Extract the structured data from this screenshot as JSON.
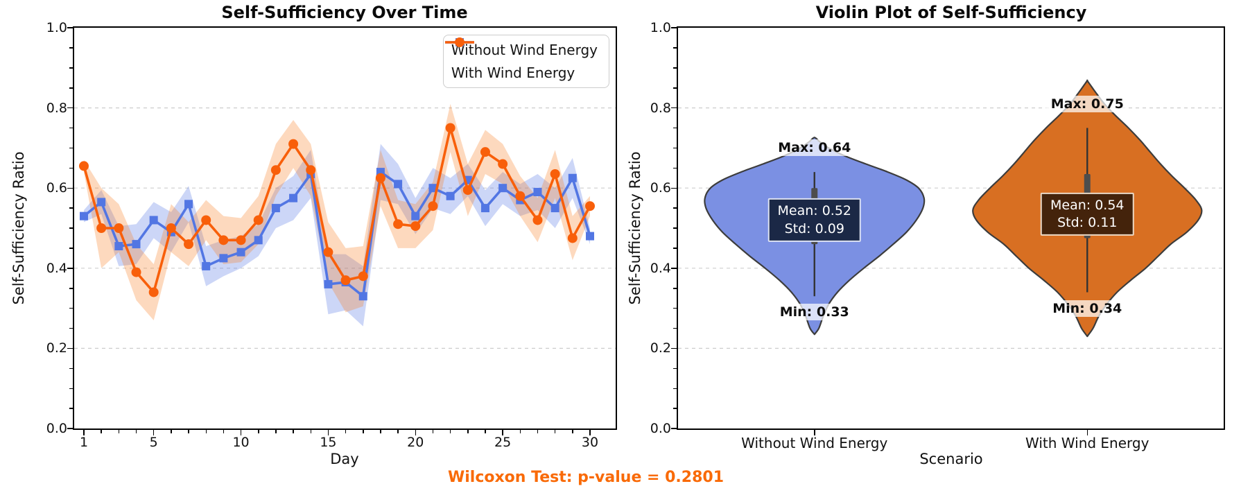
{
  "note": {
    "text": "Wilcoxon Test: p-value = 0.2801",
    "color": "#F96A07"
  },
  "chart_data": [
    {
      "type": "line",
      "title": "Self-Sufficiency Over Time",
      "xlabel": "Day",
      "ylabel": "Self-Sufficiency Ratio",
      "ylim": [
        0.0,
        1.0
      ],
      "y_tick_labels": [
        "0.0",
        "0.2",
        "0.4",
        "0.6",
        "0.8",
        "1.0"
      ],
      "x_major_ticks": [
        1,
        5,
        10,
        15,
        20,
        25,
        30
      ],
      "grid_values": [
        0.2,
        0.4,
        0.6,
        0.8
      ],
      "grid_style": "horizontal-dashed",
      "legend_position": "upper right",
      "x": [
        1,
        2,
        3,
        4,
        5,
        6,
        7,
        8,
        9,
        10,
        11,
        12,
        13,
        14,
        15,
        16,
        17,
        18,
        19,
        20,
        21,
        22,
        23,
        24,
        25,
        26,
        27,
        28,
        29,
        30
      ],
      "series": [
        {
          "name": "Without Wind Energy",
          "color": "#5276E3",
          "band_color": "rgba(85,120,230,0.30)",
          "marker": "square",
          "values": [
            0.53,
            0.565,
            0.455,
            0.46,
            0.52,
            0.49,
            0.56,
            0.405,
            0.425,
            0.44,
            0.47,
            0.55,
            0.575,
            0.635,
            0.36,
            0.365,
            0.33,
            0.64,
            0.61,
            0.53,
            0.6,
            0.58,
            0.62,
            0.55,
            0.6,
            0.57,
            0.59,
            0.55,
            0.625,
            0.48
          ],
          "band_halfwidth": [
            0.015,
            0.03,
            0.05,
            0.05,
            0.045,
            0.05,
            0.045,
            0.05,
            0.045,
            0.04,
            0.04,
            0.05,
            0.055,
            0.06,
            0.075,
            0.07,
            0.075,
            0.07,
            0.05,
            0.045,
            0.05,
            0.045,
            0.04,
            0.045,
            0.04,
            0.04,
            0.045,
            0.05,
            0.05,
            0.02
          ]
        },
        {
          "name": "With Wind Energy",
          "color": "#F85F0A",
          "band_color": "rgba(248,130,40,0.30)",
          "marker": "circle",
          "values": [
            0.655,
            0.5,
            0.5,
            0.39,
            0.34,
            0.5,
            0.46,
            0.52,
            0.47,
            0.47,
            0.52,
            0.645,
            0.71,
            0.645,
            0.44,
            0.37,
            0.38,
            0.625,
            0.51,
            0.505,
            0.555,
            0.75,
            0.595,
            0.69,
            0.66,
            0.58,
            0.52,
            0.635,
            0.475,
            0.555
          ],
          "band_halfwidth": [
            0.015,
            0.1,
            0.06,
            0.07,
            0.07,
            0.06,
            0.055,
            0.05,
            0.06,
            0.055,
            0.06,
            0.065,
            0.06,
            0.065,
            0.075,
            0.08,
            0.075,
            0.07,
            0.06,
            0.055,
            0.06,
            0.06,
            0.065,
            0.055,
            0.05,
            0.05,
            0.055,
            0.06,
            0.055,
            0.025
          ]
        }
      ]
    },
    {
      "type": "violin",
      "title": "Violin Plot of Self-Sufficiency",
      "xlabel": "Scenario",
      "ylabel": "Self-Sufficiency Ratio",
      "ylim": [
        0.0,
        1.0
      ],
      "y_tick_labels": [
        "0.0",
        "0.2",
        "0.4",
        "0.6",
        "0.8",
        "1.0"
      ],
      "grid_values": [
        0.2,
        0.4,
        0.6,
        0.8
      ],
      "categories": [
        "Without Wind Energy",
        "With Wind Energy"
      ],
      "violins": [
        {
          "name": "Without Wind Energy",
          "fill": "#7B90E3",
          "edge": "#3C3C3C",
          "stats": {
            "mean": 0.52,
            "std": 0.09,
            "min": 0.33,
            "max": 0.64
          },
          "labels": {
            "max": "Max: 0.64",
            "min": "Min: 0.33",
            "mean": "Mean: 0.52",
            "std": "Std: 0.09"
          },
          "label_box": {
            "bg": "#1B2846",
            "border": "#DCE2F2"
          },
          "whisker": [
            0.33,
            0.64
          ],
          "box": [
            0.46,
            0.6
          ],
          "annotation_y": {
            "max": 0.7,
            "mean": 0.52,
            "min": 0.29
          },
          "profile": [
            [
              0.235,
              0.0
            ],
            [
              0.25,
              0.04
            ],
            [
              0.28,
              0.08
            ],
            [
              0.31,
              0.13
            ],
            [
              0.34,
              0.21
            ],
            [
              0.37,
              0.32
            ],
            [
              0.4,
              0.45
            ],
            [
              0.43,
              0.59
            ],
            [
              0.46,
              0.72
            ],
            [
              0.49,
              0.84
            ],
            [
              0.52,
              0.93
            ],
            [
              0.55,
              0.99
            ],
            [
              0.575,
              1.0
            ],
            [
              0.6,
              0.95
            ],
            [
              0.62,
              0.84
            ],
            [
              0.64,
              0.67
            ],
            [
              0.66,
              0.47
            ],
            [
              0.68,
              0.28
            ],
            [
              0.7,
              0.13
            ],
            [
              0.715,
              0.05
            ],
            [
              0.725,
              0.01
            ]
          ]
        },
        {
          "name": "With Wind Energy",
          "fill": "#D86F22",
          "edge": "#3C3C3C",
          "stats": {
            "mean": 0.54,
            "std": 0.11,
            "min": 0.34,
            "max": 0.75
          },
          "labels": {
            "max": "Max: 0.75",
            "min": "Min: 0.34",
            "mean": "Mean: 0.54",
            "std": "Std: 0.11"
          },
          "label_box": {
            "bg": "#44230B",
            "border": "#EBD9C6"
          },
          "whisker": [
            0.34,
            0.75
          ],
          "box": [
            0.475,
            0.635
          ],
          "annotation_y": {
            "max": 0.81,
            "mean": 0.535,
            "min": 0.3
          },
          "profile": [
            [
              0.23,
              0.0
            ],
            [
              0.25,
              0.05
            ],
            [
              0.28,
              0.1
            ],
            [
              0.31,
              0.17
            ],
            [
              0.34,
              0.26
            ],
            [
              0.37,
              0.38
            ],
            [
              0.4,
              0.51
            ],
            [
              0.43,
              0.62
            ],
            [
              0.46,
              0.73
            ],
            [
              0.49,
              0.87
            ],
            [
              0.52,
              0.97
            ],
            [
              0.545,
              1.0
            ],
            [
              0.57,
              0.95
            ],
            [
              0.6,
              0.85
            ],
            [
              0.63,
              0.74
            ],
            [
              0.66,
              0.64
            ],
            [
              0.69,
              0.55
            ],
            [
              0.72,
              0.46
            ],
            [
              0.75,
              0.36
            ],
            [
              0.78,
              0.25
            ],
            [
              0.81,
              0.15
            ],
            [
              0.84,
              0.07
            ],
            [
              0.86,
              0.02
            ],
            [
              0.868,
              0.0
            ]
          ]
        }
      ]
    }
  ]
}
